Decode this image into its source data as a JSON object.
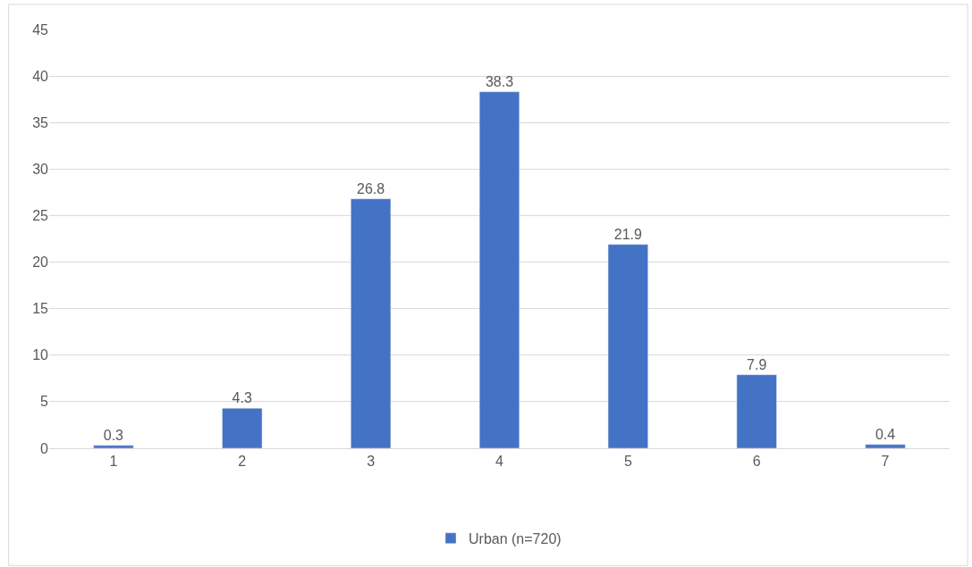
{
  "chart_data": {
    "type": "bar",
    "categories": [
      "1",
      "2",
      "3",
      "4",
      "5",
      "6",
      "7"
    ],
    "series": [
      {
        "name": "Urban (n=720)",
        "color": "#4472c4",
        "values": [
          0.3,
          4.3,
          26.8,
          38.3,
          21.9,
          7.9,
          0.4
        ]
      }
    ],
    "ylim": [
      0,
      45
    ],
    "yticks": [
      0,
      5,
      10,
      15,
      20,
      25,
      30,
      35,
      40,
      45
    ],
    "grid": "y",
    "legend": "bottom",
    "data_labels": true
  }
}
